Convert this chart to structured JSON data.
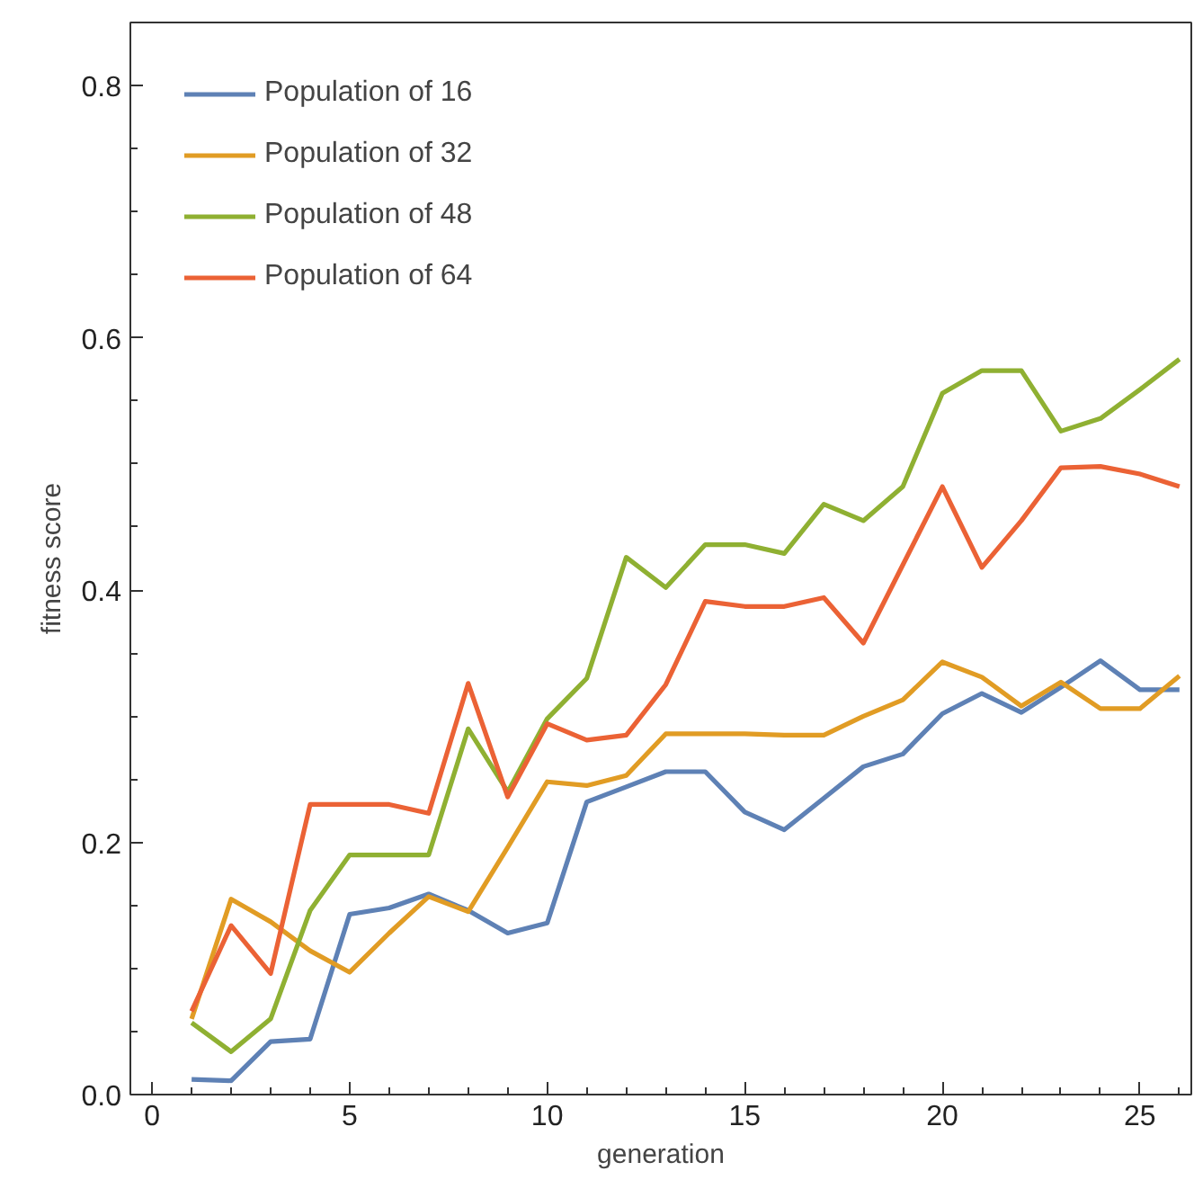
{
  "chart_data": {
    "type": "line",
    "xlabel": "generation",
    "ylabel": "fitness score",
    "x": [
      1,
      2,
      3,
      4,
      5,
      6,
      7,
      8,
      9,
      10,
      11,
      12,
      13,
      14,
      15,
      16,
      17,
      18,
      19,
      20,
      21,
      22,
      23,
      24,
      25,
      26
    ],
    "xlim": [
      -0.55,
      26.3
    ],
    "xticks": [
      0,
      5,
      10,
      15,
      20,
      25
    ],
    "ylim": [
      0,
      0.85
    ],
    "yticks": [
      {
        "value": 0,
        "label": "0.0"
      },
      {
        "value": 0.2,
        "label": "0.2"
      },
      {
        "value": 0.4,
        "label": "0.4"
      },
      {
        "value": 0.6,
        "label": "0.6"
      },
      {
        "value": 0.8,
        "label": "0.8"
      }
    ],
    "grid": false,
    "legend": "top left",
    "marker": "none",
    "line_style": "solid",
    "series": [
      {
        "name": "Population of 16",
        "color": "#5e81b5",
        "values": [
          0.012,
          0.011,
          0.042,
          0.044,
          0.143,
          0.148,
          0.159,
          0.146,
          0.128,
          0.136,
          0.232,
          0.244,
          0.256,
          0.256,
          0.224,
          0.21,
          0.235,
          0.26,
          0.27,
          0.302,
          0.318,
          0.303,
          0.323,
          0.344,
          0.321,
          0.321
        ]
      },
      {
        "name": "Population of 32",
        "color": "#e19c24",
        "values": [
          0.06,
          0.155,
          0.137,
          0.114,
          0.097,
          0.128,
          0.157,
          0.145,
          0.196,
          0.248,
          0.245,
          0.253,
          0.286,
          0.286,
          0.286,
          0.285,
          0.285,
          0.3,
          0.313,
          0.343,
          0.331,
          0.308,
          0.327,
          0.306,
          0.306,
          0.332
        ]
      },
      {
        "name": "Population of 48",
        "color": "#8fb032",
        "values": [
          0.057,
          0.034,
          0.06,
          0.146,
          0.19,
          0.19,
          0.19,
          0.29,
          0.24,
          0.298,
          0.33,
          0.426,
          0.402,
          0.436,
          0.436,
          0.429,
          0.468,
          0.455,
          0.482,
          0.556,
          0.574,
          0.574,
          0.526,
          0.536,
          0.559,
          0.583
        ]
      },
      {
        "name": "Population of 64",
        "color": "#eb6235",
        "values": [
          0.066,
          0.134,
          0.096,
          0.23,
          0.23,
          0.23,
          0.223,
          0.326,
          0.236,
          0.294,
          0.281,
          0.285,
          0.325,
          0.391,
          0.387,
          0.387,
          0.394,
          0.358,
          0.42,
          0.482,
          0.418,
          0.455,
          0.497,
          0.498,
          0.492,
          0.482
        ]
      }
    ]
  }
}
